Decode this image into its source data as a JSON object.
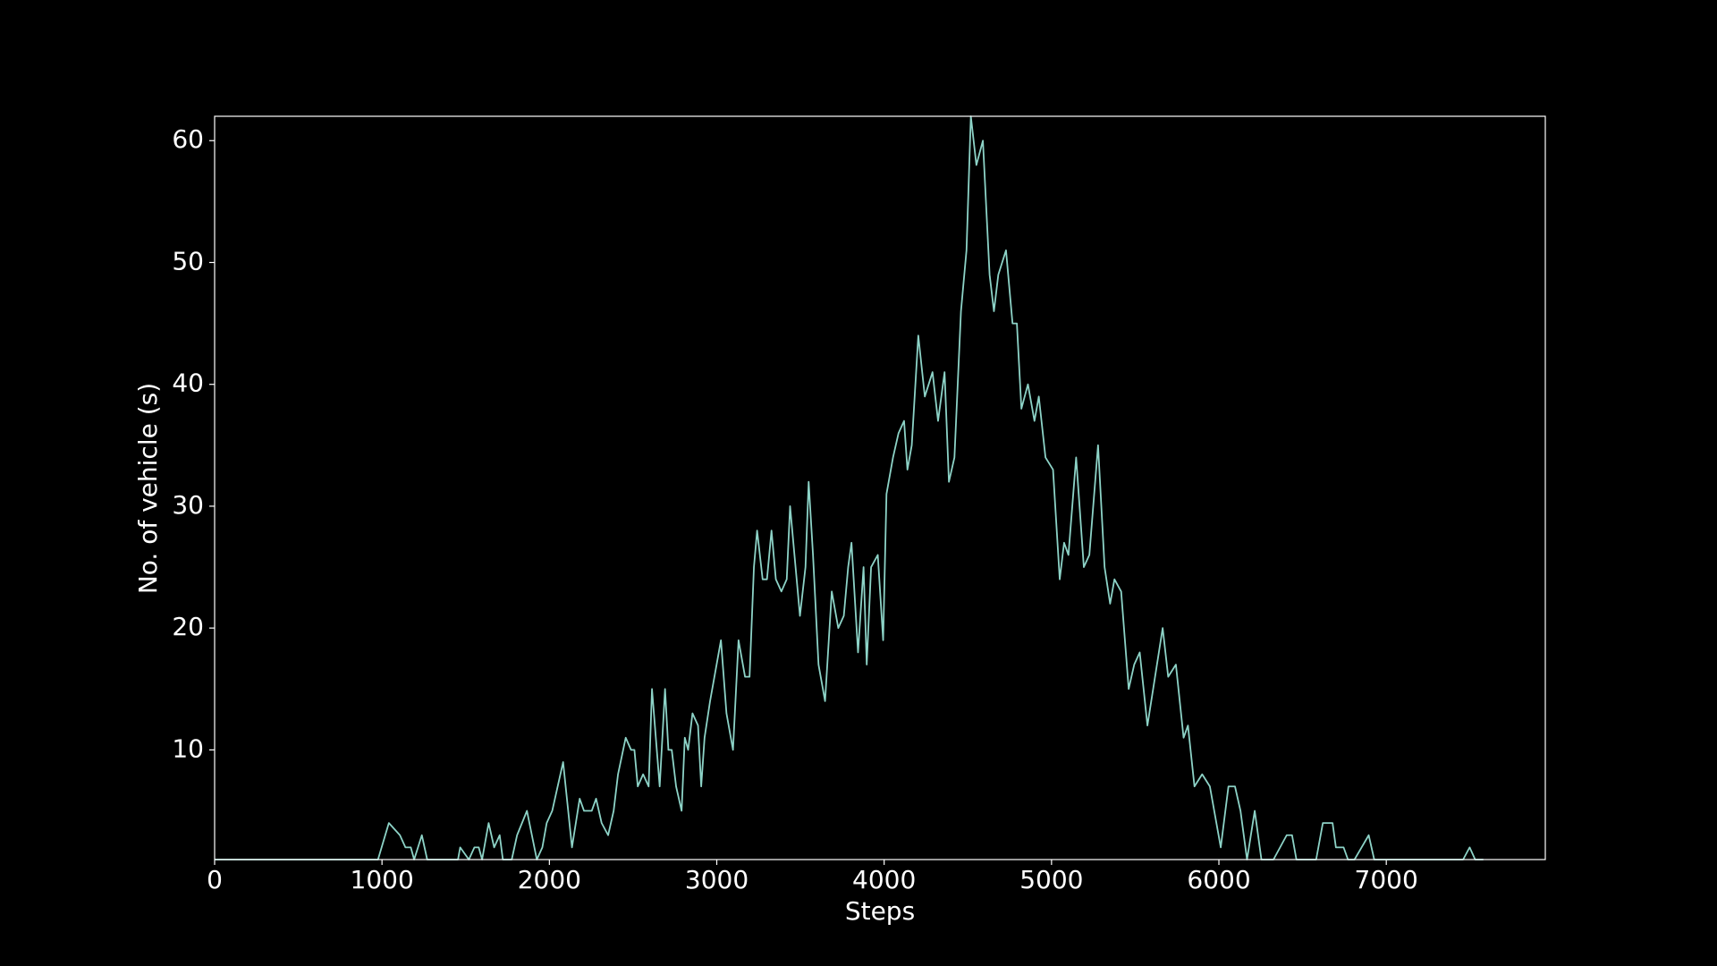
{
  "chart_data": {
    "type": "line",
    "x_label": "Steps",
    "y_label": "No. of vehicle (s)",
    "color": "#8dd3c7",
    "x": [
      0,
      976,
      1041,
      1107,
      1140,
      1172,
      1192,
      1238,
      1270,
      1454,
      1467,
      1519,
      1552,
      1578,
      1598,
      1637,
      1670,
      1703,
      1722,
      1775,
      1807,
      1866,
      1925,
      1958,
      1984,
      2017,
      2082,
      2135,
      2181,
      2207,
      2253,
      2279,
      2312,
      2351,
      2384,
      2410,
      2456,
      2488,
      2508,
      2528,
      2560,
      2593,
      2613,
      2659,
      2691,
      2711,
      2731,
      2757,
      2790,
      2809,
      2829,
      2855,
      2888,
      2907,
      2927,
      2960,
      2999,
      3025,
      3058,
      3097,
      3130,
      3169,
      3196,
      3222,
      3241,
      3274,
      3300,
      3327,
      3353,
      3386,
      3418,
      3438,
      3497,
      3530,
      3549,
      3575,
      3608,
      3647,
      3687,
      3726,
      3759,
      3785,
      3805,
      3844,
      3877,
      3896,
      3922,
      3962,
      3994,
      4014,
      4053,
      4086,
      4119,
      4139,
      4165,
      4204,
      4243,
      4289,
      4322,
      4361,
      4387,
      4420,
      4459,
      4492,
      4518,
      4551,
      4590,
      4630,
      4656,
      4682,
      4728,
      4767,
      4793,
      4820,
      4859,
      4898,
      4924,
      4964,
      5009,
      5049,
      5075,
      5101,
      5147,
      5193,
      5226,
      5278,
      5317,
      5350,
      5376,
      5416,
      5461,
      5494,
      5527,
      5573,
      5664,
      5697,
      5743,
      5789,
      5815,
      5854,
      5900,
      5946,
      6011,
      6057,
      6096,
      6129,
      6168,
      6214,
      6254,
      6326,
      6405,
      6437,
      6463,
      6581,
      6621,
      6679,
      6699,
      6745,
      6771,
      6810,
      6895,
      6928,
      7459,
      7498,
      7531,
      7580
    ],
    "values": [
      1,
      1,
      4,
      3,
      2,
      2,
      1,
      3,
      1,
      1,
      2,
      1,
      2,
      2,
      1,
      4,
      2,
      3,
      1,
      1,
      3,
      5,
      1,
      2,
      4,
      5,
      9,
      2,
      6,
      5,
      5,
      6,
      4,
      3,
      5,
      8,
      11,
      10,
      10,
      7,
      8,
      7,
      15,
      7,
      15,
      10,
      10,
      7,
      5,
      11,
      10,
      13,
      12,
      7,
      11,
      14,
      17,
      19,
      13,
      10,
      19,
      16,
      16,
      25,
      28,
      24,
      24,
      28,
      24,
      23,
      24,
      30,
      21,
      25,
      32,
      26,
      17,
      14,
      23,
      20,
      21,
      25,
      27,
      18,
      25,
      17,
      25,
      26,
      19,
      31,
      34,
      36,
      37,
      33,
      35,
      44,
      39,
      41,
      37,
      41,
      32,
      34,
      46,
      51,
      62,
      58,
      60,
      49,
      46,
      49,
      51,
      45,
      45,
      38,
      40,
      37,
      39,
      34,
      33,
      24,
      27,
      26,
      34,
      25,
      26,
      35,
      25,
      22,
      24,
      23,
      15,
      17,
      18,
      12,
      20,
      16,
      17,
      11,
      12,
      7,
      8,
      7,
      2,
      7,
      7,
      5,
      1,
      5,
      1,
      1,
      3,
      3,
      1,
      1,
      4,
      4,
      2,
      2,
      1,
      1,
      3,
      1,
      1,
      2,
      1,
      1
    ],
    "xlim": [
      0,
      7950
    ],
    "ylim": [
      1,
      62
    ],
    "xticks": [
      0,
      1000,
      2000,
      3000,
      4000,
      5000,
      6000,
      7000
    ],
    "yticks": [
      10,
      20,
      30,
      40,
      50,
      60
    ]
  }
}
